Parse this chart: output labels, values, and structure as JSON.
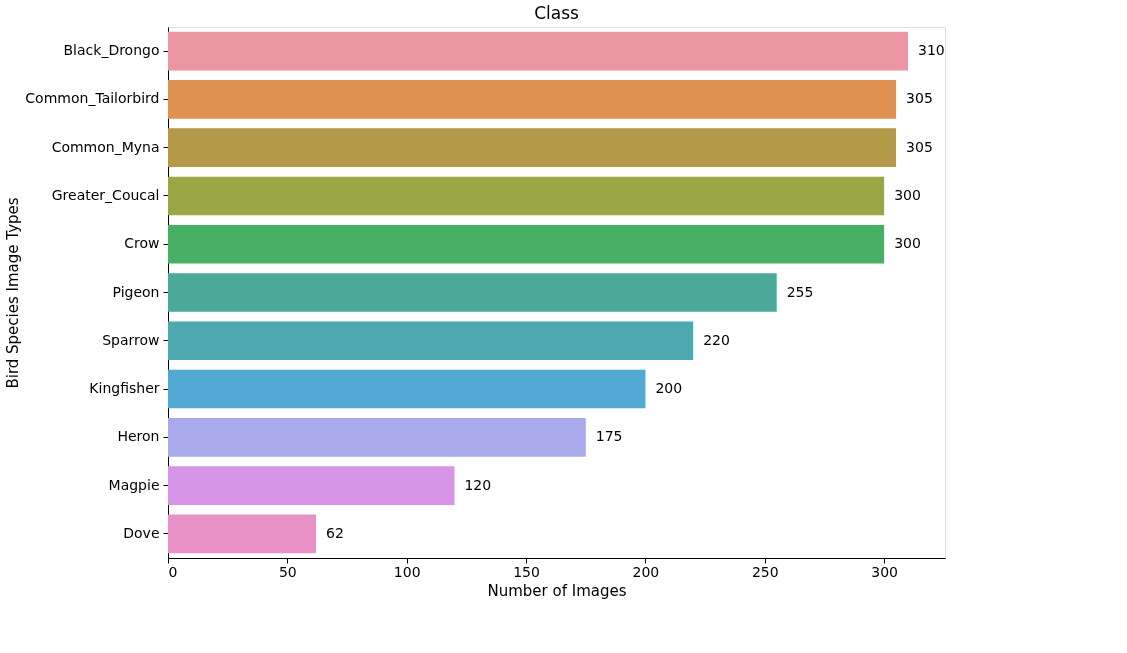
{
  "chart_data": {
    "type": "bar",
    "orientation": "horizontal",
    "title": "Class",
    "xlabel": "Number of Images",
    "ylabel": "Bird Species Image Types",
    "categories": [
      "Black_Drongo",
      "Common_Tailorbird",
      "Common_Myna",
      "Greater_Coucal",
      "Crow",
      "Pigeon",
      "Sparrow",
      "Kingfisher",
      "Heron",
      "Magpie",
      "Dove"
    ],
    "values": [
      310,
      305,
      305,
      300,
      300,
      255,
      220,
      200,
      175,
      120,
      62
    ],
    "colors": [
      "#ea96a3",
      "#de9150",
      "#b49a48",
      "#9ba745",
      "#48b065",
      "#4aaa97",
      "#4da9b0",
      "#51a9d3",
      "#a8a9ea",
      "#d794e7",
      "#e891c7"
    ],
    "xlim": [
      0,
      325.5
    ],
    "xticks": [
      0,
      50,
      100,
      150,
      200,
      250,
      300
    ],
    "grid": false,
    "legend": false,
    "data_labels": true
  }
}
